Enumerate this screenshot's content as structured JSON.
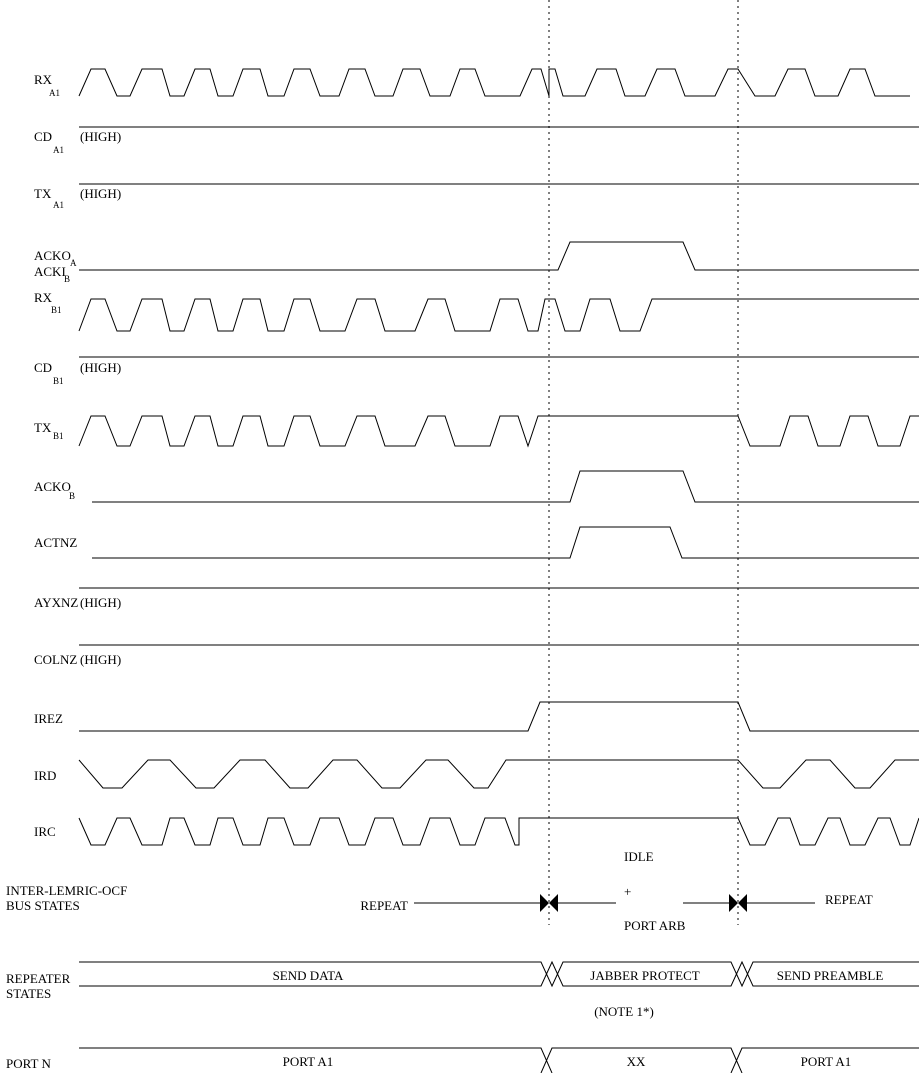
{
  "signals": {
    "rx_a1": {
      "name": "RX",
      "sub": "A1"
    },
    "cd_a1": {
      "name": "CD",
      "sub": "A1",
      "note": "(HIGH)"
    },
    "tx_a1": {
      "name": "TX",
      "sub": "A1",
      "note": "(HIGH)"
    },
    "acko_a": {
      "name1": "ACKO",
      "sup": "A",
      "name2": "ACKI",
      "sub": "B"
    },
    "rx_b1": {
      "name": "RX",
      "sub": "B1"
    },
    "cd_b1": {
      "name": "CD",
      "sub": "B1",
      "note": "(HIGH)"
    },
    "tx_b1": {
      "name": "TX",
      "sub": "B1"
    },
    "acko_b": {
      "name": "ACKO",
      "sub": "B"
    },
    "actnz": {
      "name": "ACTNZ"
    },
    "ayxnz": {
      "name": "AYXNZ",
      "note": "(HIGH)"
    },
    "colnz": {
      "name": "COLNZ",
      "note": "(HIGH)"
    },
    "irez": {
      "name": "IREZ"
    },
    "ird": {
      "name": "IRD"
    },
    "irc": {
      "name": "IRC"
    }
  },
  "bus_states": {
    "label1": "INTER-LEMRIC-OCF",
    "label2": "BUS STATES",
    "repeat_left": "REPEAT",
    "idle": "IDLE",
    "plus": "+",
    "port_arb": "PORT ARB",
    "repeat_right": "REPEAT"
  },
  "repeater_states": {
    "label1": "REPEATER",
    "label2": "STATES",
    "send_data": "SEND DATA",
    "jabber_protect": "JABBER PROTECT",
    "note": "(NOTE 1*)",
    "send_preamble": "SEND PREAMBLE"
  },
  "port_n": {
    "label": "PORT N",
    "left": "PORT A1",
    "mid": "XX",
    "right": "PORT A1"
  }
}
